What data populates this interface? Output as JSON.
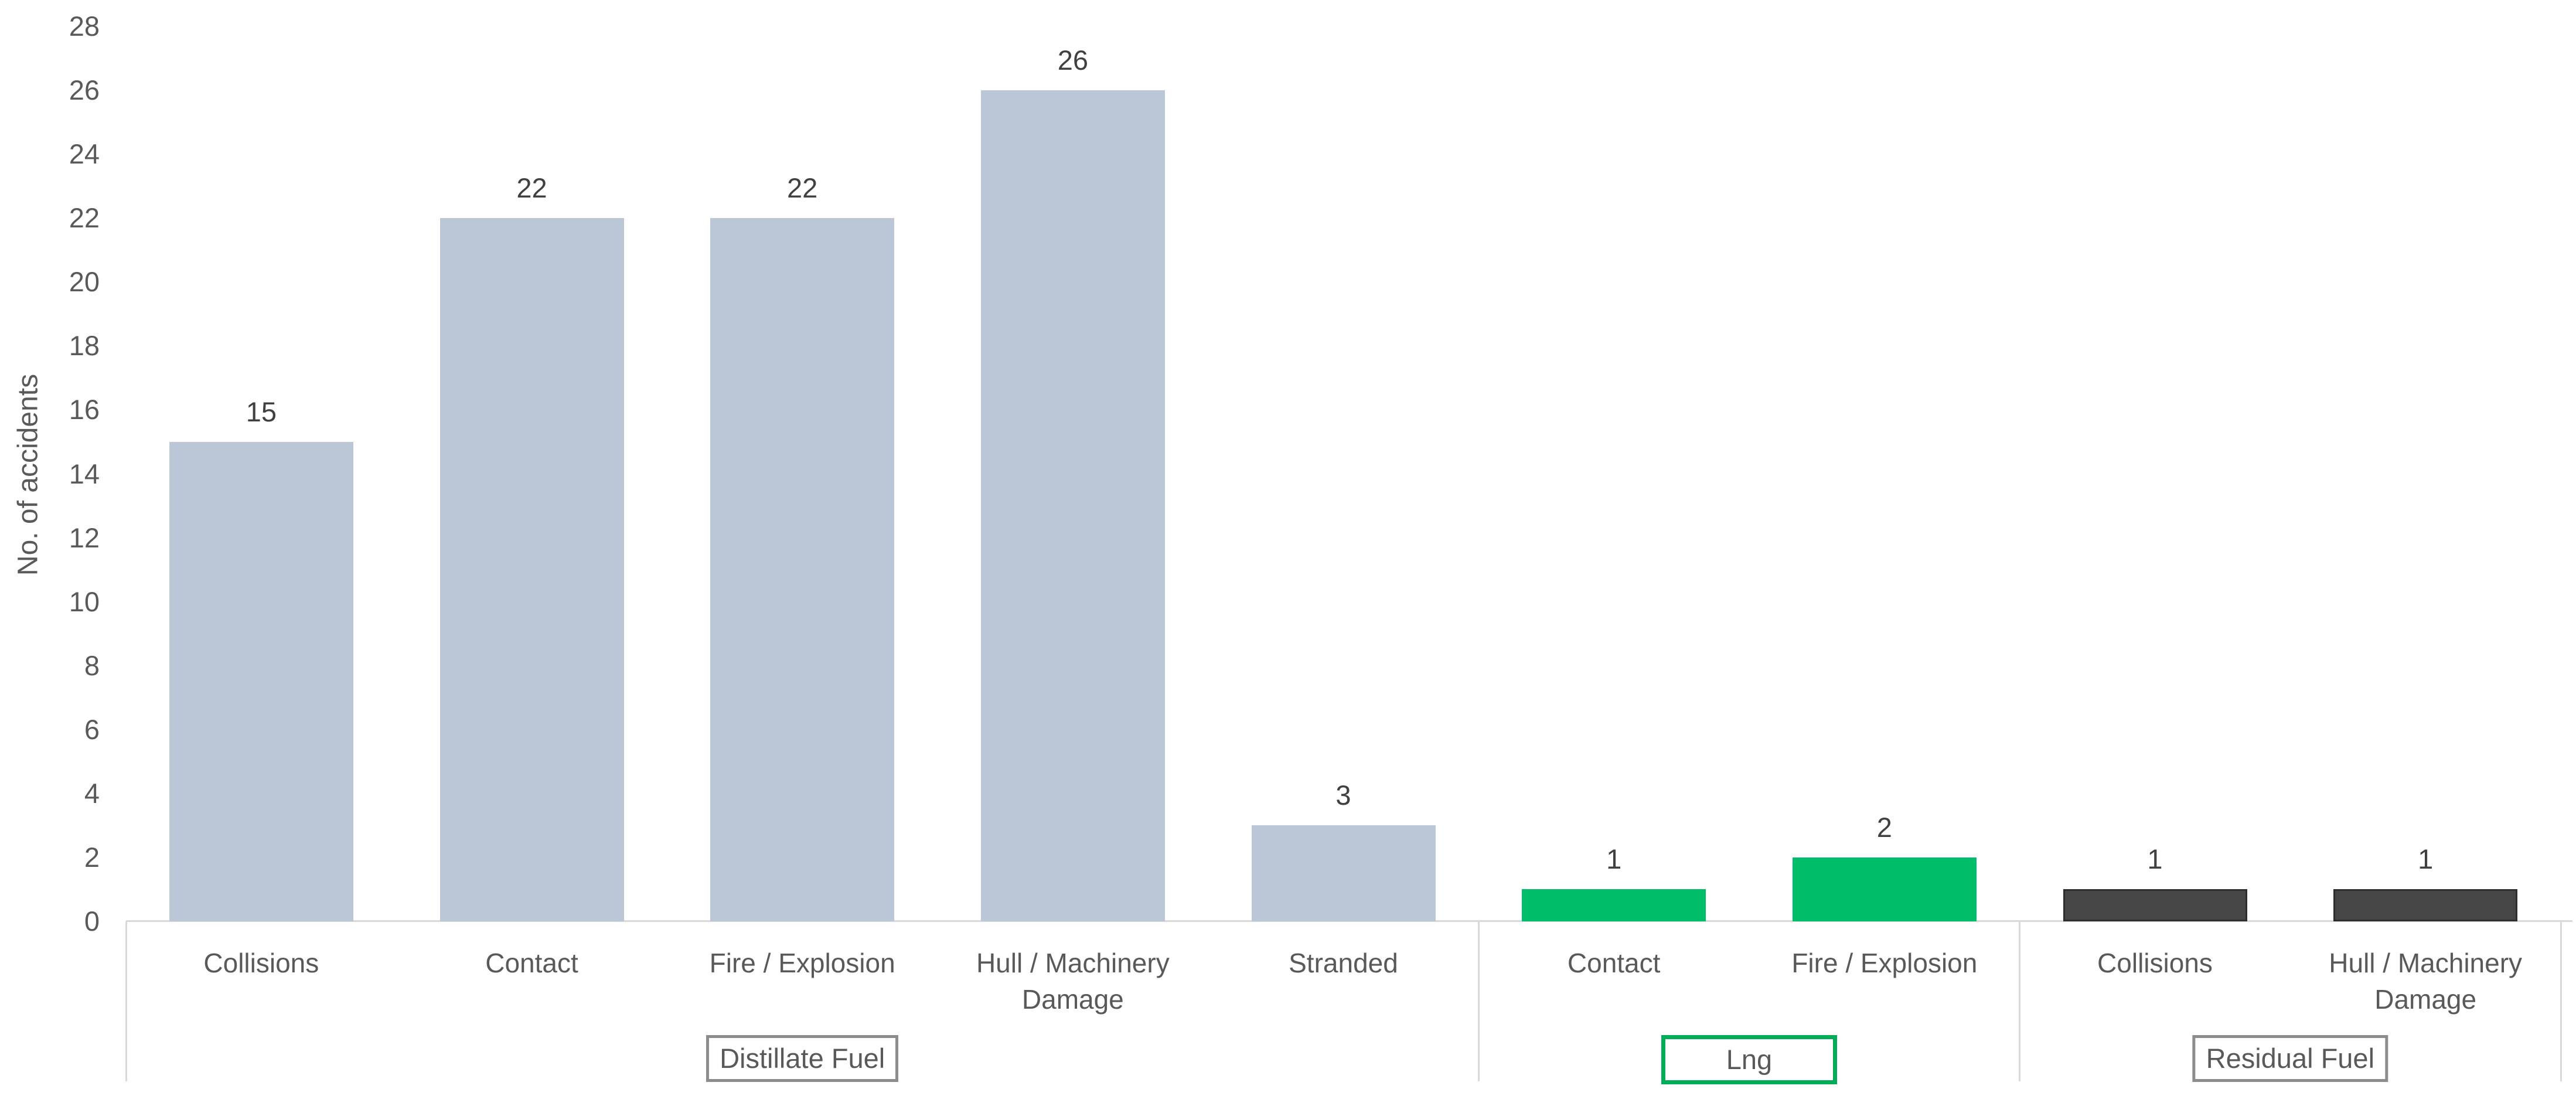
{
  "chart_data": {
    "type": "bar",
    "title": "",
    "ylabel": "No. of accidents",
    "xlabel": "",
    "ylim": [
      0,
      28
    ],
    "ytick_step": 2,
    "yticks": [
      0,
      2,
      4,
      6,
      8,
      10,
      12,
      14,
      16,
      18,
      20,
      22,
      24,
      26,
      28
    ],
    "grid": false,
    "legend": "none",
    "bar_value_labels_shown": true,
    "groups": [
      {
        "label": "Distillate Fuel",
        "box_style": "gray",
        "bar_color": "#BBC7D6",
        "categories": [
          "Collisions",
          "Contact",
          "Fire / Explosion",
          "Hull / Machinery Damage",
          "Stranded"
        ],
        "values": [
          15,
          22,
          22,
          26,
          3
        ]
      },
      {
        "label": "Lng",
        "box_style": "green",
        "bar_color": "#00BD6A",
        "categories": [
          "Contact",
          "Fire / Explosion"
        ],
        "values": [
          1,
          2
        ]
      },
      {
        "label": "Residual Fuel",
        "box_style": "gray",
        "bar_color": "#464646",
        "bar_border": "#2E2E2E",
        "categories": [
          "Collisions",
          "Hull / Machinery Damage"
        ],
        "values": [
          1,
          1
        ]
      }
    ]
  },
  "colors": {
    "distillate_bar": "#BBC7D6",
    "lng_bar": "#00BD6A",
    "residual_bar": "#464646",
    "lng_box_border": "#00AC58",
    "gray_box_border": "#8C8C8C",
    "axis_line": "#D9D9D9",
    "group_divider": "#D9D9D9",
    "tick_text": "#595959",
    "category_text": "#595959",
    "value_text": "#404040"
  }
}
